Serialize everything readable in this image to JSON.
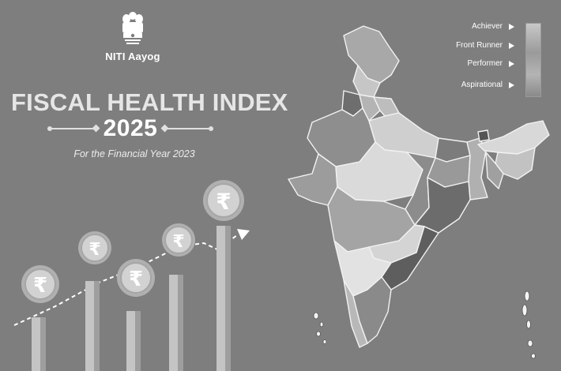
{
  "header": {
    "emblem_icon": "national-emblem-icon",
    "org_name": "NITI Aayog",
    "title": "FISCAL HEALTH INDEX",
    "year": "2025",
    "subtitle": "For the Financial Year 2023"
  },
  "illustration": {
    "coin_symbol": "₹",
    "coin_count": 5,
    "trend_arrow_icon": "trend-arrow-icon"
  },
  "legend": {
    "items": [
      "Achiever",
      "Front Runner",
      "Performer",
      "Aspirational"
    ]
  },
  "map": {
    "subject": "india-map-icon"
  },
  "colors": {
    "background": "#7e7e7e",
    "text": "#ffffff"
  }
}
